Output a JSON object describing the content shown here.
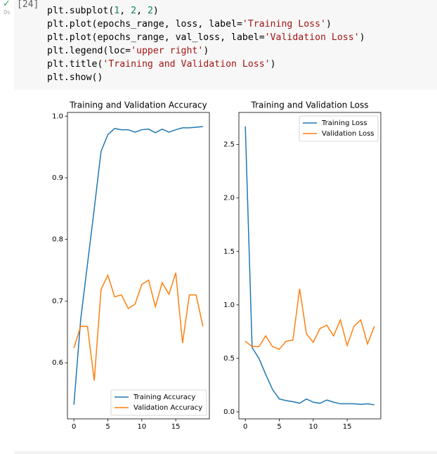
{
  "cell": {
    "execution_count": "[24]",
    "status": "✓",
    "duration": "0s",
    "code": [
      "plt.subplot(1, 2, 2)",
      "plt.plot(epochs_range, loss, label='Training Loss')",
      "plt.plot(epochs_range, val_loss, label='Validation Loss')",
      "plt.legend(loc='upper right')",
      "plt.title('Training and Validation Loss')",
      "plt.show()"
    ]
  },
  "chart_data": [
    {
      "type": "line",
      "title": "Training and Validation Accuracy",
      "x": [
        0,
        1,
        2,
        3,
        4,
        5,
        6,
        7,
        8,
        9,
        10,
        11,
        12,
        13,
        14,
        15,
        16,
        17,
        18,
        19
      ],
      "series": [
        {
          "name": "Training Accuracy",
          "color": "#1f77b4",
          "values": [
            0.532,
            0.67,
            0.76,
            0.85,
            0.943,
            0.97,
            0.98,
            0.978,
            0.978,
            0.974,
            0.978,
            0.979,
            0.973,
            0.979,
            0.974,
            0.978,
            0.981,
            0.981,
            0.982,
            0.983
          ]
        },
        {
          "name": "Validation Accuracy",
          "color": "#ff7f0e",
          "values": [
            0.624,
            0.659,
            0.659,
            0.571,
            0.719,
            0.742,
            0.707,
            0.71,
            0.688,
            0.695,
            0.727,
            0.734,
            0.691,
            0.73,
            0.711,
            0.746,
            0.632,
            0.71,
            0.71,
            0.659
          ]
        }
      ],
      "xlim": [
        -0.95,
        19.95
      ],
      "ylim": [
        0.509,
        1.006
      ],
      "xticks": [
        0,
        5,
        10,
        15
      ],
      "yticks": [
        0.6,
        0.7,
        0.8,
        0.9,
        {
          "value": 1,
          "label": "1.0"
        }
      ],
      "legend": "lower right"
    },
    {
      "type": "line",
      "title": "Training and Validation Loss",
      "x": [
        0,
        1,
        2,
        3,
        4,
        5,
        6,
        7,
        8,
        9,
        10,
        11,
        12,
        13,
        14,
        15,
        16,
        17,
        18,
        19
      ],
      "series": [
        {
          "name": "Training Loss",
          "color": "#1f77b4",
          "values": [
            2.67,
            0.6,
            0.5,
            0.35,
            0.21,
            0.12,
            0.105,
            0.095,
            0.08,
            0.12,
            0.09,
            0.08,
            0.11,
            0.09,
            0.075,
            0.075,
            0.075,
            0.07,
            0.075,
            0.065
          ]
        },
        {
          "name": "Validation Loss",
          "color": "#ff7f0e",
          "values": [
            0.66,
            0.61,
            0.61,
            0.71,
            0.61,
            0.585,
            0.66,
            0.67,
            1.15,
            0.73,
            0.65,
            0.78,
            0.81,
            0.71,
            0.86,
            0.62,
            0.8,
            0.86,
            0.635,
            0.8
          ]
        }
      ],
      "xlim": [
        -0.95,
        19.95
      ],
      "ylim": [
        -0.066,
        2.8
      ],
      "xticks": [
        0,
        5,
        10,
        15
      ],
      "yticks": [
        {
          "value": 0,
          "label": "0.0"
        },
        0.5,
        {
          "value": 1,
          "label": "1.0"
        },
        1.5,
        {
          "value": 2,
          "label": "2.0"
        },
        2.5
      ],
      "legend": "upper right"
    }
  ]
}
